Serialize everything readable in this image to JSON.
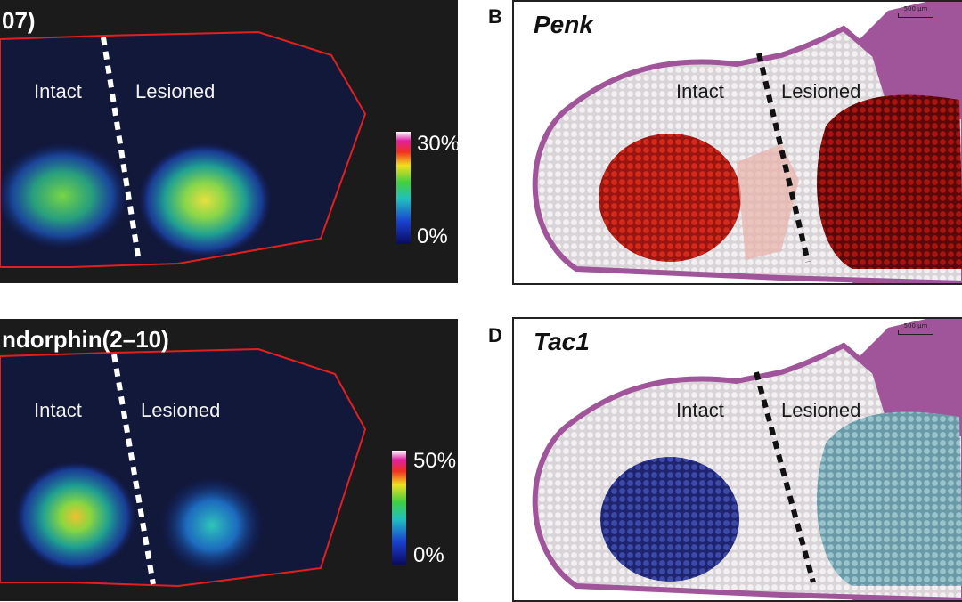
{
  "panels": {
    "a": {
      "title": "07)",
      "left_label": "Intact",
      "right_label": "Lesioned",
      "colorbar": {
        "max": "30%",
        "min": "0%"
      }
    },
    "b": {
      "letter": "B",
      "gene": "Penk",
      "scale": "500 µm",
      "left_label": "Intact",
      "right_label": "Lesioned",
      "spot_color": "#c81e14"
    },
    "c": {
      "title": "ndorphin(2–10)",
      "left_label": "Intact",
      "right_label": "Lesioned",
      "colorbar": {
        "max": "50%",
        "min": "0%"
      }
    },
    "d": {
      "letter": "D",
      "gene": "Tac1",
      "scale": "500 µm",
      "left_label": "Intact",
      "right_label": "Lesioned",
      "spot_color": "#2a3a9a"
    }
  },
  "colors": {
    "dark_bg": "#1b1b1b",
    "outline": "#e02020",
    "tissue": "#a0559a"
  }
}
